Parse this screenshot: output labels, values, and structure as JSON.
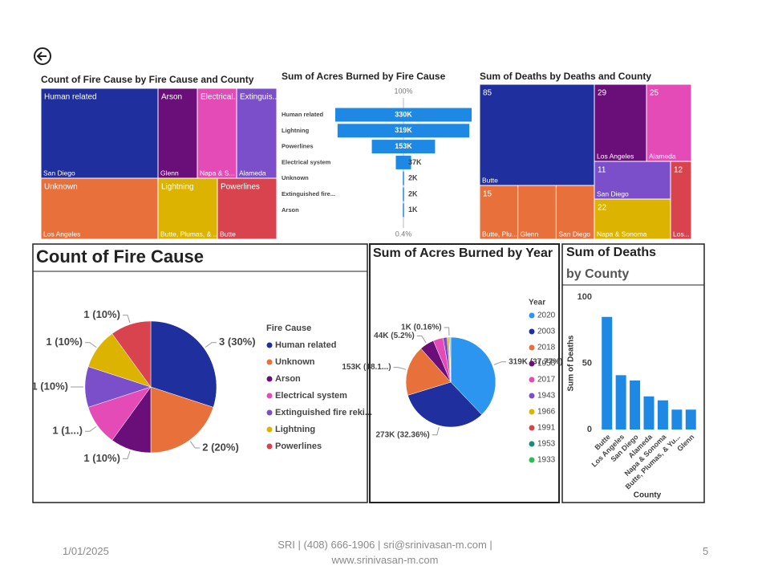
{
  "chart_data": [
    {
      "type": "treemap",
      "title": "Count of Fire Cause by Fire Cause and County",
      "cells": [
        {
          "name": "Human related",
          "value": 3,
          "counties": [
            "San Diego"
          ],
          "color": "#1f2f9e"
        },
        {
          "name": "Arson",
          "value": 1,
          "counties": [
            "Glenn"
          ],
          "color": "#6a0f7a"
        },
        {
          "name": "Electrical...",
          "value": 1,
          "counties": [
            "Napa & S..."
          ],
          "color": "#e44bb6"
        },
        {
          "name": "Extinguis...",
          "value": 1,
          "counties": [
            "Alameda"
          ],
          "color": "#7b4fc9"
        },
        {
          "name": "Unknown",
          "value": 2,
          "counties": [
            "Los Angeles"
          ],
          "color": "#e8703a"
        },
        {
          "name": "Lightning",
          "value": 1,
          "counties": [
            "Butte, Plumas, & ..."
          ],
          "color": "#dcb300"
        },
        {
          "name": "Powerlines",
          "value": 1,
          "counties": [
            "Butte"
          ],
          "color": "#d9434e"
        }
      ]
    },
    {
      "type": "funnel",
      "title": "Sum of Acres Burned by Fire Cause",
      "top_label": "100%",
      "bottom_label": "0.4%",
      "categories": [
        "Human related",
        "Lightning",
        "Powerlines",
        "Electrical system",
        "Unknown",
        "Extinguished fire...",
        "Arson"
      ],
      "values": [
        330000,
        319000,
        153000,
        37000,
        2000,
        2000,
        1000
      ],
      "value_labels": [
        "330K",
        "319K",
        "153K",
        "37K",
        "2K",
        "2K",
        "1K"
      ],
      "color": "#1e88e5"
    },
    {
      "type": "treemap",
      "title": "Sum of Deaths by Deaths and County",
      "cells": [
        {
          "value": 85,
          "counties": [
            "Butte"
          ],
          "color": "#1f2f9e"
        },
        {
          "value": 15,
          "counties": [
            "Butte, Plu...",
            "Glenn",
            "San Diego"
          ],
          "color": "#e8703a"
        },
        {
          "value": 29,
          "counties": [
            "Los Angeles"
          ],
          "color": "#6a0f7a"
        },
        {
          "value": 25,
          "counties": [
            "Alameda"
          ],
          "color": "#e44bb6"
        },
        {
          "value": 11,
          "counties": [
            "San Diego"
          ],
          "color": "#7b4fc9"
        },
        {
          "value": 22,
          "counties": [
            "Napa & Sonoma"
          ],
          "color": "#dcb300"
        },
        {
          "value": 12,
          "counties": [
            "Los..."
          ],
          "color": "#d9434e"
        }
      ]
    },
    {
      "type": "pie",
      "title": "Count of Fire Cause",
      "legend_title": "Fire Cause",
      "categories": [
        "Human related",
        "Unknown",
        "Arson",
        "Electrical system",
        "Extinguished fire reki...",
        "Lightning",
        "Powerlines"
      ],
      "values": [
        3,
        2,
        1,
        1,
        1,
        1,
        1
      ],
      "value_labels": [
        "3 (30%)",
        "2 (20%)",
        "1 (10%)",
        "1 (1...)",
        "1 (10%)",
        "1 (10%)",
        "1 (10%)"
      ],
      "colors": [
        "#1f2f9e",
        "#e8703a",
        "#6a0f7a",
        "#e44bb6",
        "#7b4fc9",
        "#dcb300",
        "#d9434e"
      ]
    },
    {
      "type": "pie",
      "title": "Sum of Acres Burned by Year",
      "legend_title": "Year",
      "categories": [
        "2020",
        "2003",
        "2018",
        "1956",
        "2017",
        "1943",
        "1966",
        "1991",
        "1953",
        "1933"
      ],
      "values": [
        319000,
        273000,
        153000,
        44000,
        30000,
        12000,
        6000,
        1350,
        3000,
        1000
      ],
      "value_labels": [
        "319K (37.77%)",
        "273K (32.36%)",
        "153K (18.1...)",
        "44K (5.2%)",
        null,
        null,
        null,
        "1K (0.16%)",
        null,
        null
      ],
      "colors": [
        "#2b95f0",
        "#1f2f9e",
        "#e8703a",
        "#6a0f7a",
        "#e44bb6",
        "#7b4fc9",
        "#dcb300",
        "#d9434e",
        "#1a8c7f",
        "#2dbd55"
      ]
    },
    {
      "type": "bar",
      "title": "Sum of Deaths",
      "subtitle": "by County",
      "y_label": "Sum of Deaths",
      "x_label": "County",
      "categories": [
        "Butte",
        "Los Angeles",
        "San Diego",
        "Alameda",
        "Napa & Sonoma",
        "Butte, Plumas, & Yu...",
        "Glenn"
      ],
      "values": [
        85,
        41,
        37,
        25,
        22,
        15,
        15
      ],
      "color": "#1e88e5",
      "ylim": [
        0,
        100
      ],
      "yticks": [
        0,
        50,
        100
      ],
      "grid": false
    }
  ],
  "footer": {
    "date": "1/01/2025",
    "contact": "SRI | (408) 666-1906 | sri@srinivasan-m.com | www.srinivasan-m.com",
    "page": "5"
  }
}
